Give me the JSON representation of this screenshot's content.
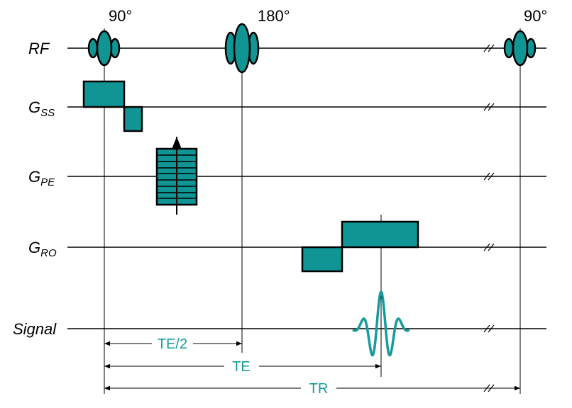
{
  "rows": [
    {
      "label": "RF"
    },
    {
      "label": "G",
      "subscript": "SS"
    },
    {
      "label": "G",
      "subscript": "PE"
    },
    {
      "label": "G",
      "subscript": "RO"
    },
    {
      "label": "Signal"
    }
  ],
  "pulses": [
    "90°",
    "180°",
    "90°"
  ],
  "intervals": [
    "TE/2",
    "TE",
    "TR"
  ]
}
